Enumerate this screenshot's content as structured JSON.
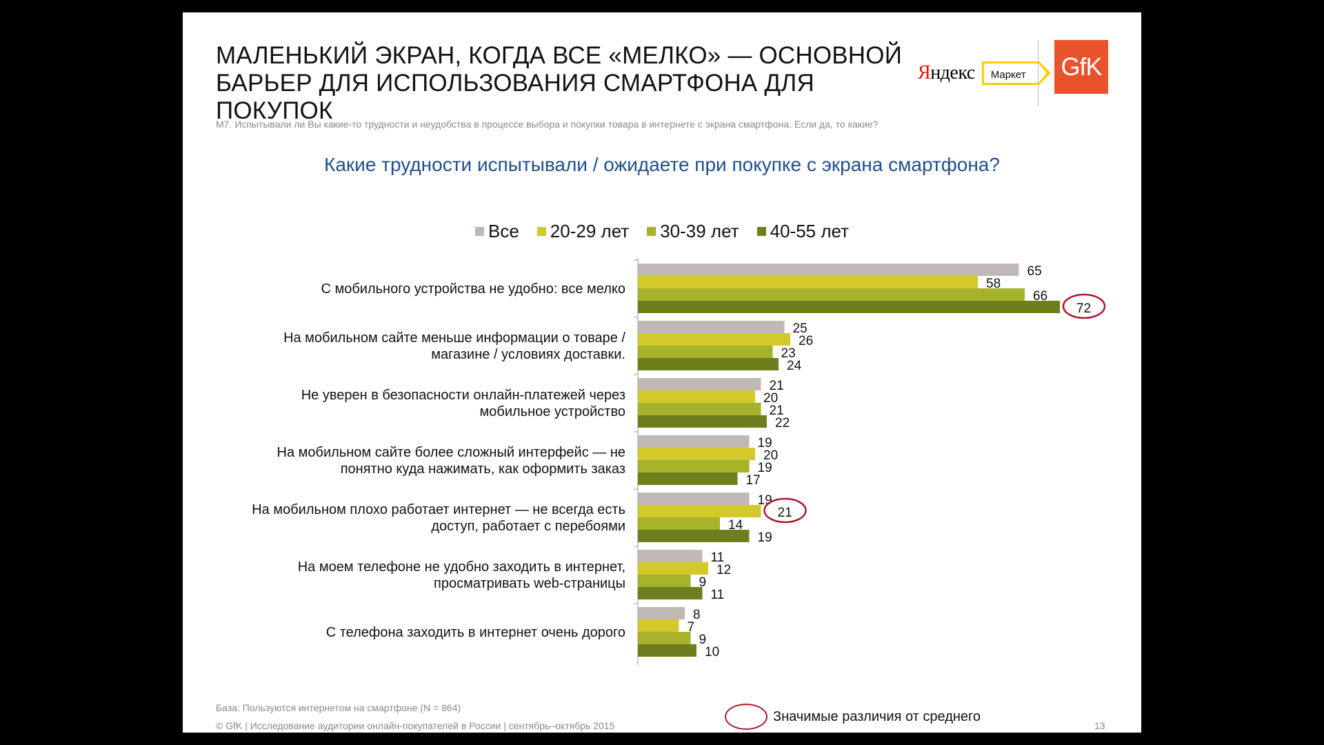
{
  "slide": {
    "title": "МАЛЕНЬКИЙ ЭКРАН, КОГДА ВСЕ «МЕЛКО» — ОСНОВНОЙ БАРЬЕР ДЛЯ ИСПОЛЬЗОВАНИЯ СМАРТФОНА ДЛЯ ПОКУПОК",
    "question": "M7. Испытывали ли Вы какие-то трудности и неудобства в процессе выбора и покупки товара в интернете с экрана смартфона. Если да, то какие?",
    "base_note": "База: Пользуются интернетом на смартфоне (N = 864)",
    "footer": "© GfK | Исследование аудитории онлайн-покупателей в России | сентябрь–октябрь 2015",
    "page_number": "13",
    "significance_legend": "Значимые различия от среднего",
    "logos": {
      "yandex_first": "Я",
      "yandex_rest": "ндекс",
      "market": "Маркет",
      "gfk": "GfK"
    }
  },
  "colors": {
    "Все": "#bfb8b5",
    "20-29 лет": "#d2c92a",
    "30-39 лет": "#a5b22a",
    "40-55 лет": "#6e7d1d",
    "title_blue": "#1f4e8c",
    "highlight": "#b0142b"
  },
  "chart_data": {
    "type": "bar",
    "orientation": "horizontal",
    "title": "Какие трудности испытывали / ожидаете при покупке с экрана смартфона?",
    "legend_position": "top",
    "categories": [
      [
        "С мобильного устройства не удобно: все мелко"
      ],
      [
        "На мобильном сайте меньше информации о товаре /",
        "магазине / условиях доставки."
      ],
      [
        "Не уверен в безопасности онлайн-платежей через",
        "мобильное устройство"
      ],
      [
        "На мобильном сайте более сложный интерфейс — не",
        "понятно куда нажимать, как оформить заказ"
      ],
      [
        "На мобильном плохо работает интернет — не всегда есть",
        "доступ, работает с перебоями"
      ],
      [
        "На моем телефоне не удобно заходить в интернет,",
        "просматривать web-страницы"
      ],
      [
        "С телефона заходить в интернет очень дорого"
      ]
    ],
    "series": [
      {
        "name": "Все",
        "values": [
          65,
          25,
          21,
          19,
          19,
          11,
          8
        ]
      },
      {
        "name": "20-29 лет",
        "values": [
          58,
          26,
          20,
          20,
          21,
          12,
          7
        ]
      },
      {
        "name": "30-39 лет",
        "values": [
          66,
          23,
          21,
          19,
          14,
          9,
          9
        ]
      },
      {
        "name": "40-55 лет",
        "values": [
          72,
          24,
          22,
          17,
          19,
          11,
          10
        ]
      }
    ],
    "highlighted": [
      {
        "series": "40-55 лет",
        "category_index": 0
      },
      {
        "series": "20-29 лет",
        "category_index": 4
      }
    ],
    "xlim": [
      0,
      72
    ]
  }
}
